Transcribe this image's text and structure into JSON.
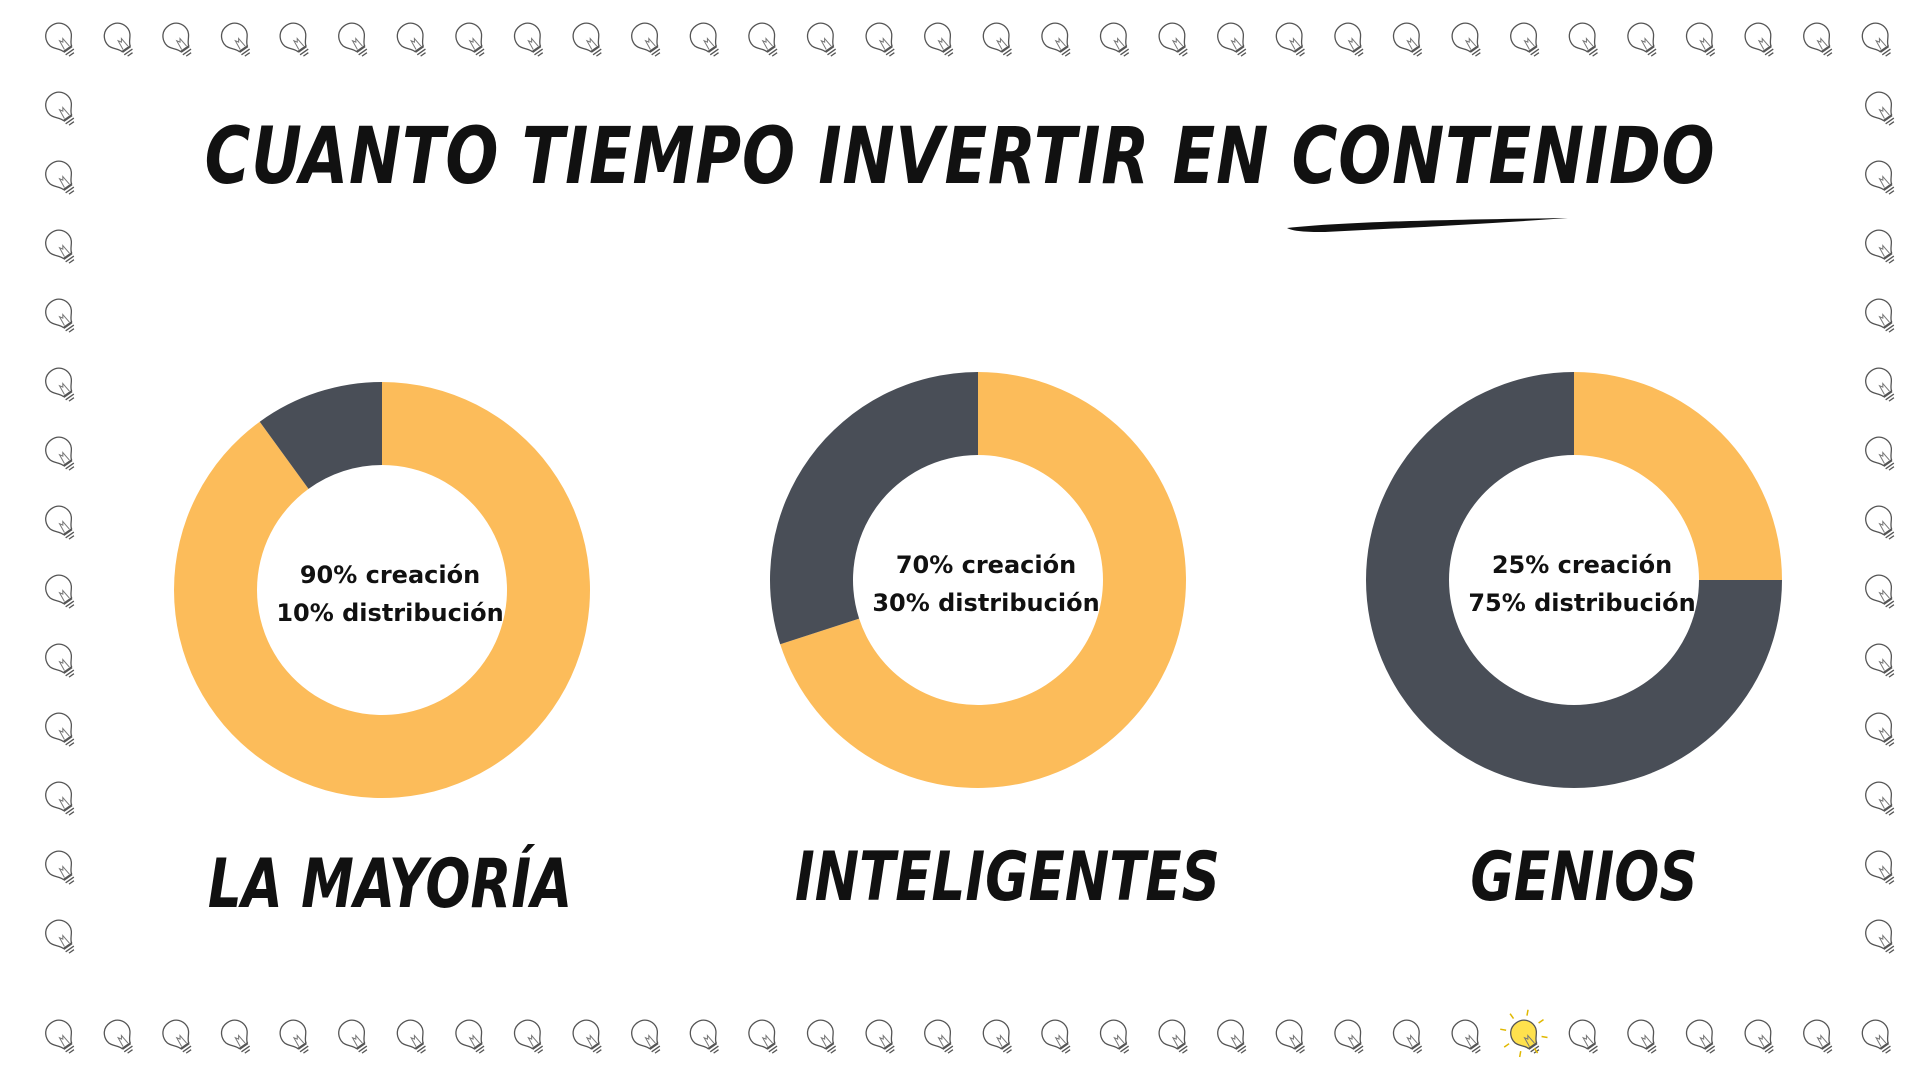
{
  "title": "CUANTO TIEMPO INVERTIR EN CONTENIDO",
  "border_icon": "lightbulb-icon",
  "colors": {
    "creation": "#FCBC5A",
    "distribution": "#494E57",
    "text": "#111111",
    "highlight_bulb": "#FFE14D"
  },
  "chart_data": [
    {
      "type": "pie",
      "title": "LA MAYORÍA",
      "slices": [
        {
          "name": "creación",
          "value": 90
        },
        {
          "name": "distribución",
          "value": 10
        }
      ],
      "center_lines": [
        "90% creación",
        "10% distribución"
      ]
    },
    {
      "type": "pie",
      "title": "INTELIGENTES",
      "slices": [
        {
          "name": "creación",
          "value": 70
        },
        {
          "name": "distribución",
          "value": 30
        }
      ],
      "center_lines": [
        "70% creación",
        "30% distribución"
      ]
    },
    {
      "type": "pie",
      "title": "GENIOS",
      "slices": [
        {
          "name": "creación",
          "value": 25
        },
        {
          "name": "distribución",
          "value": 75
        }
      ],
      "center_lines": [
        "25% creación",
        "75% distribución"
      ]
    }
  ]
}
